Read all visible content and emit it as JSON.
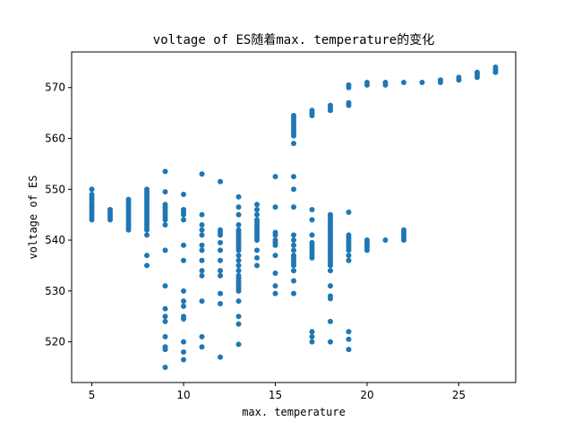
{
  "chart_data": {
    "type": "scatter",
    "title": "voltage of ES随着max. temperature的变化",
    "xlabel": "max. temperature",
    "ylabel": "voltage of ES",
    "xlim": [
      3.9,
      28.1
    ],
    "ylim": [
      512,
      577
    ],
    "xticks": [
      5,
      10,
      15,
      20,
      25
    ],
    "yticks": [
      520,
      530,
      540,
      550,
      560,
      570
    ],
    "grid": false,
    "legend": "none",
    "marker_color": "#1f77b4",
    "points": [
      [
        5,
        544
      ],
      [
        5,
        544.5
      ],
      [
        5,
        545
      ],
      [
        5,
        545.5
      ],
      [
        5,
        546
      ],
      [
        5,
        546.5
      ],
      [
        5,
        547
      ],
      [
        5,
        547.5
      ],
      [
        5,
        548
      ],
      [
        5,
        548.5
      ],
      [
        5,
        549
      ],
      [
        5,
        550
      ],
      [
        6,
        544
      ],
      [
        6,
        544.5
      ],
      [
        6,
        545
      ],
      [
        6,
        545.5
      ],
      [
        6,
        546
      ],
      [
        7,
        542
      ],
      [
        7,
        542.5
      ],
      [
        7,
        543
      ],
      [
        7,
        543.5
      ],
      [
        7,
        544
      ],
      [
        7,
        544.5
      ],
      [
        7,
        545
      ],
      [
        7,
        545.5
      ],
      [
        7,
        546
      ],
      [
        7,
        546.5
      ],
      [
        7,
        547
      ],
      [
        7,
        547.5
      ],
      [
        7,
        548
      ],
      [
        8,
        535
      ],
      [
        8,
        537
      ],
      [
        8,
        541
      ],
      [
        8,
        542
      ],
      [
        8,
        542.5
      ],
      [
        8,
        543
      ],
      [
        8,
        543.5
      ],
      [
        8,
        544
      ],
      [
        8,
        544.5
      ],
      [
        8,
        545
      ],
      [
        8,
        545.5
      ],
      [
        8,
        546
      ],
      [
        8,
        546.5
      ],
      [
        8,
        547
      ],
      [
        8,
        547.5
      ],
      [
        8,
        548
      ],
      [
        8,
        548.5
      ],
      [
        8,
        549
      ],
      [
        8,
        549.5
      ],
      [
        8,
        550
      ],
      [
        9,
        515
      ],
      [
        9,
        518.5
      ],
      [
        9,
        519
      ],
      [
        9,
        521
      ],
      [
        9,
        524
      ],
      [
        9,
        525
      ],
      [
        9,
        526.5
      ],
      [
        9,
        531
      ],
      [
        9,
        538
      ],
      [
        9,
        543
      ],
      [
        9,
        544
      ],
      [
        9,
        544.5
      ],
      [
        9,
        545
      ],
      [
        9,
        545.5
      ],
      [
        9,
        546
      ],
      [
        9,
        546.5
      ],
      [
        9,
        547
      ],
      [
        9,
        549.5
      ],
      [
        9,
        553.5
      ],
      [
        10,
        516.5
      ],
      [
        10,
        518
      ],
      [
        10,
        520
      ],
      [
        10,
        524.5
      ],
      [
        10,
        525
      ],
      [
        10,
        527
      ],
      [
        10,
        528
      ],
      [
        10,
        530
      ],
      [
        10,
        536
      ],
      [
        10,
        539
      ],
      [
        10,
        544
      ],
      [
        10,
        545
      ],
      [
        10,
        545.5
      ],
      [
        10,
        546
      ],
      [
        10,
        549
      ],
      [
        11,
        519
      ],
      [
        11,
        521
      ],
      [
        11,
        528
      ],
      [
        11,
        533
      ],
      [
        11,
        534
      ],
      [
        11,
        536
      ],
      [
        11,
        538
      ],
      [
        11,
        539
      ],
      [
        11,
        541
      ],
      [
        11,
        542
      ],
      [
        11,
        543
      ],
      [
        11,
        545
      ],
      [
        11,
        553
      ],
      [
        12,
        517
      ],
      [
        12,
        527.5
      ],
      [
        12,
        529.5
      ],
      [
        12,
        533
      ],
      [
        12,
        534
      ],
      [
        12,
        536
      ],
      [
        12,
        538
      ],
      [
        12,
        539.5
      ],
      [
        12,
        541
      ],
      [
        12,
        541.5
      ],
      [
        12,
        542
      ],
      [
        12,
        551.5
      ],
      [
        13,
        519.5
      ],
      [
        13,
        523.5
      ],
      [
        13,
        525
      ],
      [
        13,
        528
      ],
      [
        13,
        530
      ],
      [
        13,
        530.5
      ],
      [
        13,
        531
      ],
      [
        13,
        531.5
      ],
      [
        13,
        532
      ],
      [
        13,
        532.5
      ],
      [
        13,
        533
      ],
      [
        13,
        534
      ],
      [
        13,
        535
      ],
      [
        13,
        536
      ],
      [
        13,
        537
      ],
      [
        13,
        538
      ],
      [
        13,
        538.5
      ],
      [
        13,
        539
      ],
      [
        13,
        539.5
      ],
      [
        13,
        540
      ],
      [
        13,
        540.5
      ],
      [
        13,
        541
      ],
      [
        13,
        541.5
      ],
      [
        13,
        542
      ],
      [
        13,
        543
      ],
      [
        13,
        545
      ],
      [
        13,
        546.5
      ],
      [
        13,
        548.5
      ],
      [
        14,
        535
      ],
      [
        14,
        536.5
      ],
      [
        14,
        538
      ],
      [
        14,
        540
      ],
      [
        14,
        540.5
      ],
      [
        14,
        541
      ],
      [
        14,
        541.5
      ],
      [
        14,
        542
      ],
      [
        14,
        542.5
      ],
      [
        14,
        543
      ],
      [
        14,
        543.5
      ],
      [
        14,
        544
      ],
      [
        14,
        545
      ],
      [
        14,
        546
      ],
      [
        14,
        547
      ],
      [
        15,
        529.5
      ],
      [
        15,
        531
      ],
      [
        15,
        533.5
      ],
      [
        15,
        537
      ],
      [
        15,
        539
      ],
      [
        15,
        539.5
      ],
      [
        15,
        540
      ],
      [
        15,
        541
      ],
      [
        15,
        541.5
      ],
      [
        15,
        546.5
      ],
      [
        15,
        552.5
      ],
      [
        16,
        529.5
      ],
      [
        16,
        532
      ],
      [
        16,
        534
      ],
      [
        16,
        535
      ],
      [
        16,
        535.5
      ],
      [
        16,
        536
      ],
      [
        16,
        536.5
      ],
      [
        16,
        537
      ],
      [
        16,
        538
      ],
      [
        16,
        539
      ],
      [
        16,
        540
      ],
      [
        16,
        541
      ],
      [
        16,
        546.5
      ],
      [
        16,
        550
      ],
      [
        16,
        552.5
      ],
      [
        16,
        559
      ],
      [
        16,
        560.5
      ],
      [
        16,
        561
      ],
      [
        16,
        561.5
      ],
      [
        16,
        562
      ],
      [
        16,
        562.5
      ],
      [
        16,
        563
      ],
      [
        16,
        563.5
      ],
      [
        16,
        564
      ],
      [
        16,
        564.5
      ],
      [
        17,
        520
      ],
      [
        17,
        521
      ],
      [
        17,
        522
      ],
      [
        17,
        536.5
      ],
      [
        17,
        537
      ],
      [
        17,
        537.5
      ],
      [
        17,
        538
      ],
      [
        17,
        538.5
      ],
      [
        17,
        539
      ],
      [
        17,
        539.5
      ],
      [
        17,
        541
      ],
      [
        17,
        544
      ],
      [
        17,
        546
      ],
      [
        17,
        564.5
      ],
      [
        17,
        565
      ],
      [
        17,
        565.5
      ],
      [
        18,
        520
      ],
      [
        18,
        524
      ],
      [
        18,
        528.5
      ],
      [
        18,
        529
      ],
      [
        18,
        531
      ],
      [
        18,
        534
      ],
      [
        18,
        535
      ],
      [
        18,
        535.5
      ],
      [
        18,
        536
      ],
      [
        18,
        536.5
      ],
      [
        18,
        537
      ],
      [
        18,
        537.5
      ],
      [
        18,
        538
      ],
      [
        18,
        538.5
      ],
      [
        18,
        539
      ],
      [
        18,
        539.5
      ],
      [
        18,
        540
      ],
      [
        18,
        540.5
      ],
      [
        18,
        541
      ],
      [
        18,
        541.5
      ],
      [
        18,
        542
      ],
      [
        18,
        542.5
      ],
      [
        18,
        543
      ],
      [
        18,
        543.5
      ],
      [
        18,
        544
      ],
      [
        18,
        544.5
      ],
      [
        18,
        545
      ],
      [
        18,
        565.5
      ],
      [
        18,
        566
      ],
      [
        18,
        566.5
      ],
      [
        19,
        518.5
      ],
      [
        19,
        520.5
      ],
      [
        19,
        522
      ],
      [
        19,
        536
      ],
      [
        19,
        537
      ],
      [
        19,
        538
      ],
      [
        19,
        538.5
      ],
      [
        19,
        539
      ],
      [
        19,
        539.5
      ],
      [
        19,
        540
      ],
      [
        19,
        540.5
      ],
      [
        19,
        541
      ],
      [
        19,
        545.5
      ],
      [
        19,
        566.5
      ],
      [
        19,
        567
      ],
      [
        19,
        570
      ],
      [
        19,
        570.5
      ],
      [
        20,
        538
      ],
      [
        20,
        538.5
      ],
      [
        20,
        539
      ],
      [
        20,
        539.5
      ],
      [
        20,
        540
      ],
      [
        20,
        570.5
      ],
      [
        20,
        571
      ],
      [
        21,
        540
      ],
      [
        21,
        570.5
      ],
      [
        21,
        571
      ],
      [
        22,
        540
      ],
      [
        22,
        540.5
      ],
      [
        22,
        541
      ],
      [
        22,
        541.5
      ],
      [
        22,
        542
      ],
      [
        22,
        571
      ],
      [
        23,
        571
      ],
      [
        24,
        571
      ],
      [
        24,
        571.5
      ],
      [
        25,
        571.5
      ],
      [
        25,
        572
      ],
      [
        26,
        572
      ],
      [
        26,
        572.5
      ],
      [
        26,
        573
      ],
      [
        27,
        573
      ],
      [
        27,
        573.5
      ],
      [
        27,
        574
      ]
    ]
  }
}
